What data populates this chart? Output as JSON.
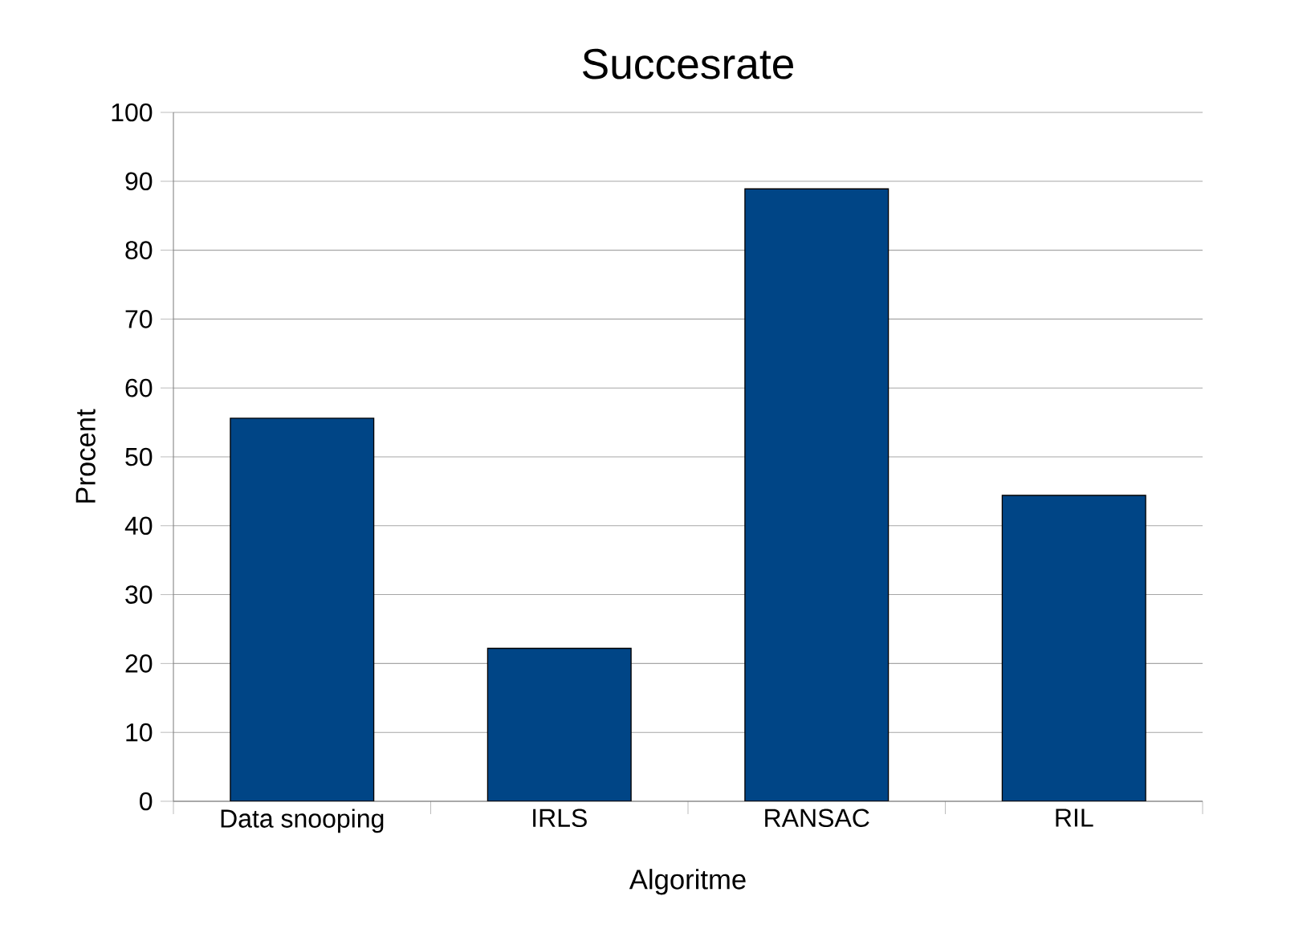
{
  "chart_data": {
    "type": "bar",
    "title": "Succesrate",
    "xlabel": "Algoritme",
    "ylabel": "Procent",
    "categories": [
      "Data snooping",
      "IRLS",
      "RANSAC",
      "RIL"
    ],
    "values": [
      55.6,
      22.2,
      88.9,
      44.4
    ],
    "color": "#004586",
    "ylim": [
      0,
      100
    ],
    "yticks": [
      0,
      10,
      20,
      30,
      40,
      50,
      60,
      70,
      80,
      90,
      100
    ],
    "grid": "y"
  }
}
